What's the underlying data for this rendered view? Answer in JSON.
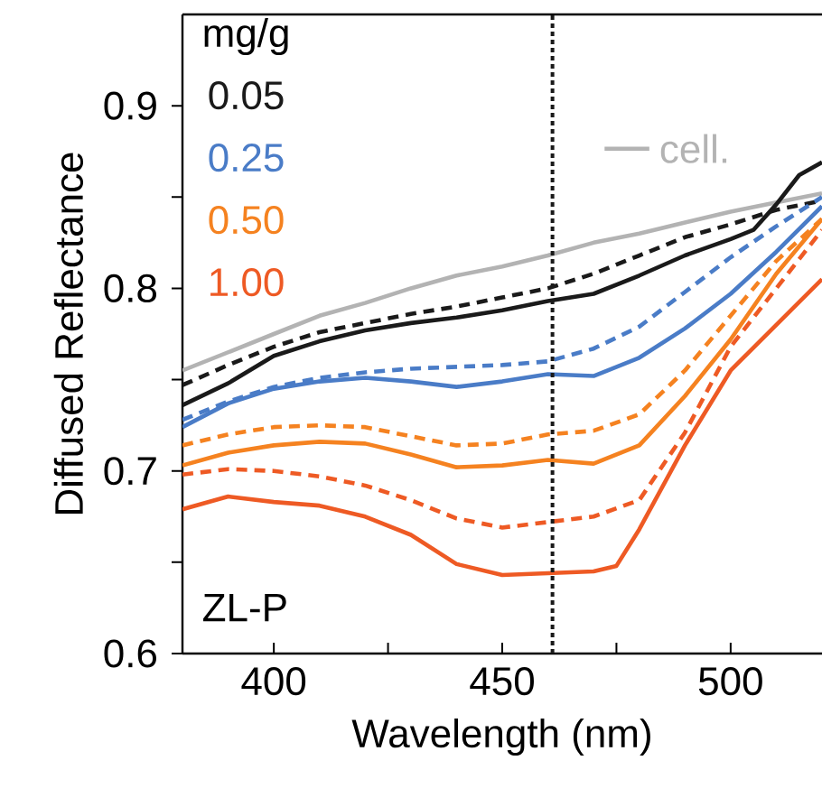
{
  "chart_data": {
    "type": "line",
    "xlabel": "Wavelength (nm)",
    "ylabel": "Diffused Reflectance",
    "legend_title": "mg/g",
    "legend": "top",
    "xlim": [
      380,
      520
    ],
    "ylim": [
      0.6,
      0.95
    ],
    "xticks": [
      400,
      {
        "value": 425,
        "label": null
      },
      450,
      {
        "value": 475,
        "label": null
      },
      500
    ],
    "yticks": [
      0.6,
      {
        "value": 0.65,
        "label": null
      },
      0.7,
      {
        "value": 0.75,
        "label": null
      },
      0.8,
      {
        "value": 0.85,
        "label": null
      },
      0.9
    ],
    "annotations": [
      "ZL-P"
    ],
    "ref_lines": [
      {
        "axis": "x",
        "value": 461,
        "color": "#1a1a1a",
        "line_style": "dotted"
      }
    ],
    "series": [
      {
        "name": "cell.",
        "color": "#b3b3b3",
        "line_style": "solid",
        "x": [
          380,
          390,
          400,
          410,
          420,
          430,
          440,
          450,
          460,
          470,
          480,
          490,
          500,
          510,
          520
        ],
        "values": [
          0.755,
          0.765,
          0.775,
          0.785,
          0.792,
          0.8,
          0.807,
          0.812,
          0.818,
          0.825,
          0.83,
          0.836,
          0.842,
          0.847,
          0.852
        ]
      },
      {
        "name": "0.05",
        "color": "#1a1a1a",
        "line_style": "solid",
        "x": [
          380,
          390,
          400,
          410,
          420,
          430,
          440,
          450,
          460,
          470,
          480,
          490,
          500,
          505,
          510,
          515,
          520
        ],
        "values": [
          0.736,
          0.748,
          0.763,
          0.771,
          0.777,
          0.781,
          0.784,
          0.788,
          0.793,
          0.797,
          0.807,
          0.818,
          0.827,
          0.832,
          0.846,
          0.862,
          0.869
        ]
      },
      {
        "color": "#1a1a1a",
        "line_style": "dashed",
        "x": [
          380,
          390,
          400,
          410,
          420,
          430,
          440,
          450,
          460,
          470,
          480,
          490,
          500,
          510,
          520
        ],
        "values": [
          0.747,
          0.758,
          0.768,
          0.776,
          0.781,
          0.786,
          0.79,
          0.795,
          0.8,
          0.808,
          0.818,
          0.828,
          0.835,
          0.843,
          0.848
        ]
      },
      {
        "name": "0.25",
        "color": "#4a7cc7",
        "line_style": "solid",
        "x": [
          380,
          390,
          400,
          410,
          420,
          430,
          440,
          450,
          460,
          470,
          480,
          490,
          500,
          510,
          520
        ],
        "values": [
          0.724,
          0.737,
          0.745,
          0.749,
          0.751,
          0.749,
          0.746,
          0.749,
          0.753,
          0.752,
          0.762,
          0.778,
          0.797,
          0.82,
          0.845
        ]
      },
      {
        "color": "#4a7cc7",
        "line_style": "dashed",
        "x": [
          380,
          390,
          400,
          410,
          420,
          430,
          440,
          450,
          460,
          470,
          480,
          490,
          500,
          510,
          520
        ],
        "values": [
          0.728,
          0.738,
          0.746,
          0.751,
          0.754,
          0.756,
          0.757,
          0.758,
          0.76,
          0.767,
          0.779,
          0.798,
          0.817,
          0.834,
          0.85
        ]
      },
      {
        "name": "0.50",
        "color": "#f58220",
        "line_style": "solid",
        "x": [
          380,
          390,
          400,
          410,
          420,
          430,
          440,
          450,
          460,
          470,
          480,
          490,
          500,
          510,
          520
        ],
        "values": [
          0.703,
          0.71,
          0.714,
          0.716,
          0.715,
          0.709,
          0.702,
          0.703,
          0.706,
          0.704,
          0.714,
          0.741,
          0.772,
          0.808,
          0.838
        ]
      },
      {
        "color": "#f58220",
        "line_style": "dashed",
        "x": [
          380,
          390,
          400,
          410,
          420,
          430,
          440,
          450,
          460,
          470,
          480,
          490,
          500,
          510,
          520
        ],
        "values": [
          0.714,
          0.72,
          0.724,
          0.725,
          0.724,
          0.719,
          0.714,
          0.715,
          0.72,
          0.722,
          0.731,
          0.755,
          0.785,
          0.815,
          0.838
        ]
      },
      {
        "name": "1.00",
        "color": "#ee5a24",
        "line_style": "solid",
        "x": [
          380,
          390,
          400,
          410,
          420,
          430,
          440,
          450,
          460,
          470,
          475,
          480,
          490,
          500,
          510,
          520
        ],
        "values": [
          0.679,
          0.686,
          0.683,
          0.681,
          0.675,
          0.665,
          0.649,
          0.643,
          0.644,
          0.645,
          0.648,
          0.668,
          0.714,
          0.755,
          0.78,
          0.805
        ]
      },
      {
        "color": "#ee5a24",
        "line_style": "dashed",
        "x": [
          380,
          390,
          400,
          410,
          420,
          430,
          440,
          450,
          460,
          470,
          480,
          490,
          500,
          510,
          520
        ],
        "values": [
          0.698,
          0.701,
          0.7,
          0.697,
          0.692,
          0.684,
          0.674,
          0.669,
          0.672,
          0.675,
          0.684,
          0.721,
          0.768,
          0.8,
          0.832
        ]
      }
    ]
  }
}
